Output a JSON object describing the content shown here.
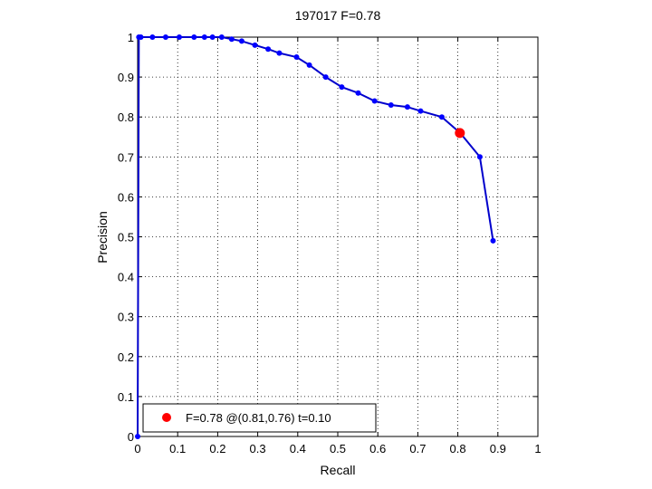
{
  "chart_data": {
    "type": "line",
    "title": "197017 F=0.78",
    "xlabel": "Recall",
    "ylabel": "Precision",
    "xlim": [
      0,
      1
    ],
    "ylim": [
      0,
      1
    ],
    "xticks": [
      "0",
      "0.1",
      "0.2",
      "0.3",
      "0.4",
      "0.5",
      "0.6",
      "0.7",
      "0.8",
      "0.9",
      "1"
    ],
    "yticks": [
      "0",
      "0.1",
      "0.2",
      "0.3",
      "0.4",
      "0.5",
      "0.6",
      "0.7",
      "0.8",
      "0.9",
      "1"
    ],
    "grid": true,
    "legend_position": "bottom-left",
    "line_color": "#0000cc",
    "marker_color": "#0000ff",
    "highlight_color": "#ff0000",
    "series": [
      {
        "points": [
          [
            0.0,
            0.0
          ],
          [
            0.003,
            1.0
          ],
          [
            0.008,
            1.0
          ],
          [
            0.037,
            1.0
          ],
          [
            0.07,
            1.0
          ],
          [
            0.104,
            1.0
          ],
          [
            0.141,
            1.0
          ],
          [
            0.167,
            1.0
          ],
          [
            0.187,
            1.0
          ],
          [
            0.21,
            1.0
          ],
          [
            0.235,
            0.995
          ],
          [
            0.26,
            0.99
          ],
          [
            0.293,
            0.98
          ],
          [
            0.326,
            0.97
          ],
          [
            0.354,
            0.96
          ],
          [
            0.397,
            0.95
          ],
          [
            0.429,
            0.93
          ],
          [
            0.47,
            0.9
          ],
          [
            0.51,
            0.875
          ],
          [
            0.551,
            0.86
          ],
          [
            0.592,
            0.84
          ],
          [
            0.633,
            0.83
          ],
          [
            0.674,
            0.825
          ],
          [
            0.707,
            0.815
          ],
          [
            0.76,
            0.8
          ],
          [
            0.806,
            0.76
          ],
          [
            0.855,
            0.7
          ],
          [
            0.888,
            0.49
          ]
        ]
      }
    ],
    "highlight_point": [
      0.805,
      0.76
    ],
    "legend": {
      "label": "F=0.78 @(0.81,0.76) t=0.10"
    }
  }
}
